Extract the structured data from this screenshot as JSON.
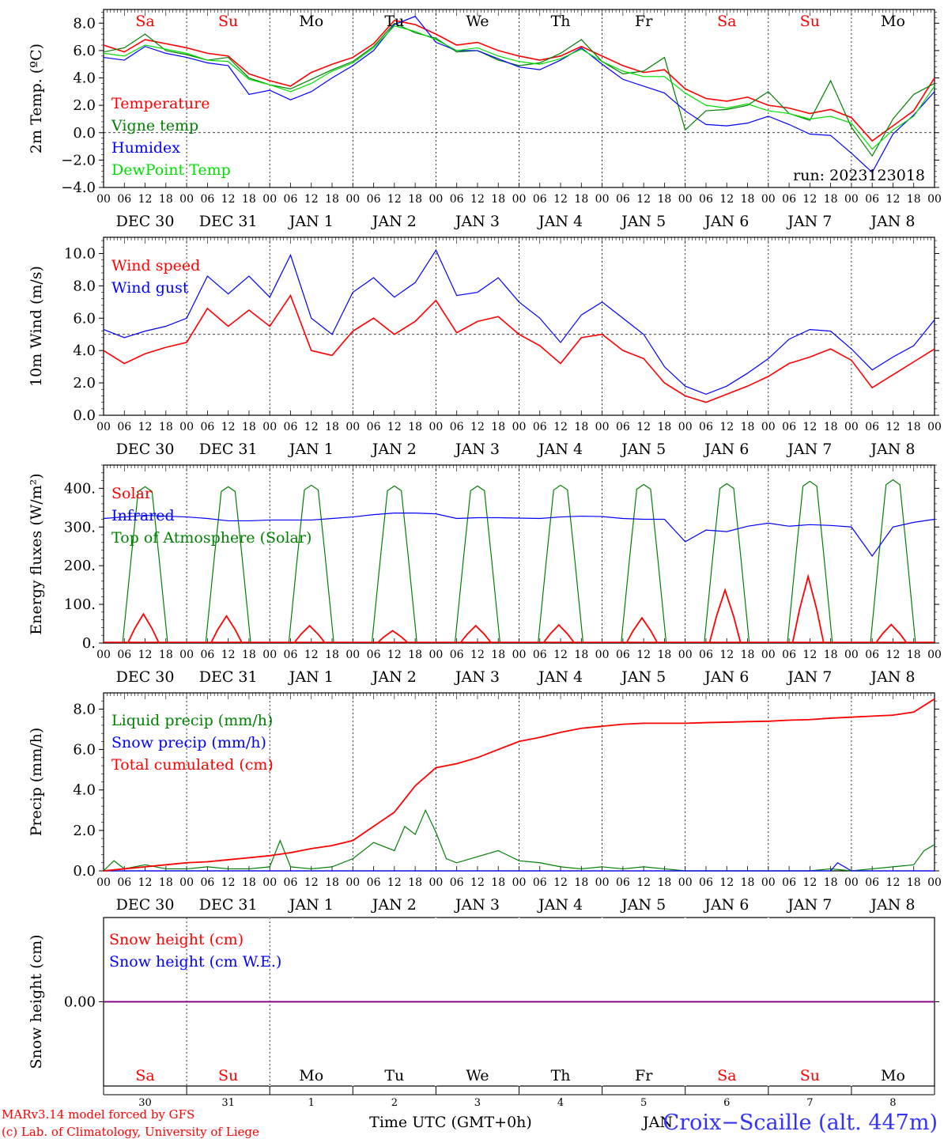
{
  "location": "Croix−Scaille (alt. 447m)",
  "credits": [
    "MARv3.14 model forced by GFS",
    "(c) Lab. of Climatology, University of Liege"
  ],
  "x_title": "Time UTC (GMT+0h)",
  "x_title_extra": "JAN",
  "run_label": "run: 2023123018",
  "hour_ticks": [
    "00",
    "06",
    "12",
    "18"
  ],
  "day_names": [
    "Sa",
    "Su",
    "Mo",
    "Tu",
    "We",
    "Th",
    "Fr",
    "Sa",
    "Su",
    "Mo"
  ],
  "weekend_flags": [
    true,
    true,
    false,
    false,
    false,
    false,
    false,
    true,
    true,
    false
  ],
  "date_labels": [
    "DEC 30",
    "DEC 31",
    "JAN  1",
    "JAN  2",
    "JAN  3",
    "JAN  4",
    "JAN  5",
    "JAN  6",
    "JAN  7",
    "JAN  8"
  ],
  "bottom_day_numbers": [
    "30",
    "31",
    "1",
    "2",
    "3",
    "4",
    "5",
    "6",
    "7",
    "8"
  ],
  "colors": {
    "red": "#ff0000",
    "green": "#008000",
    "blue": "#0000ff",
    "lightgreen": "#00dd00",
    "purple": "#800080",
    "axis": "#000000",
    "title": "#3333ff"
  },
  "chart_data": [
    {
      "type": "line",
      "ylabel": "2m Temp. (ºC)",
      "ylim": [
        -4,
        9
      ],
      "yticks": [
        "8.0",
        "6.0",
        "4.0",
        "2.0",
        "0.0",
        "−2.0",
        "−4.0"
      ],
      "ytick_values": [
        8,
        6,
        4,
        2,
        0,
        -2,
        -4
      ],
      "reference_line": 0,
      "x_unit": "hours since 2023-12-30 00 UTC",
      "legend": [
        "Temperature",
        "Vigne temp",
        "Humidex",
        "DewPoint Temp"
      ],
      "series": [
        {
          "name": "Temperature",
          "color": "#ff0000",
          "x": [
            0,
            6,
            12,
            18,
            24,
            30,
            36,
            42,
            48,
            54,
            60,
            66,
            72,
            78,
            84,
            90,
            96,
            102,
            108,
            114,
            120,
            126,
            132,
            138,
            144,
            150,
            156,
            162,
            168,
            174,
            180,
            186,
            192,
            198,
            204,
            210,
            216,
            222,
            228,
            234,
            240
          ],
          "values": [
            6.4,
            5.9,
            6.8,
            6.5,
            6.2,
            5.8,
            5.6,
            4.3,
            3.8,
            3.4,
            4.4,
            5.0,
            5.5,
            6.5,
            8.2,
            7.9,
            7.2,
            6.4,
            6.6,
            6.0,
            5.6,
            5.3,
            5.6,
            6.3,
            5.6,
            4.9,
            4.4,
            4.6,
            3.2,
            2.5,
            2.3,
            2.6,
            2.0,
            1.8,
            1.4,
            1.7,
            1.1,
            -0.6,
            0.5,
            1.6,
            4.0
          ]
        },
        {
          "name": "Vigne temp",
          "color": "#008000",
          "x": [
            0,
            6,
            12,
            18,
            24,
            30,
            36,
            42,
            48,
            54,
            60,
            66,
            72,
            78,
            84,
            90,
            96,
            102,
            108,
            114,
            120,
            126,
            132,
            138,
            144,
            150,
            156,
            162,
            168,
            174,
            180,
            186,
            192,
            198,
            204,
            210,
            216,
            222,
            228,
            234,
            240
          ],
          "values": [
            5.9,
            6.2,
            7.2,
            6.0,
            5.7,
            5.3,
            5.5,
            4.0,
            3.5,
            3.2,
            3.9,
            4.6,
            5.2,
            6.3,
            8.0,
            7.3,
            6.9,
            5.9,
            6.0,
            5.3,
            4.9,
            5.1,
            5.8,
            6.8,
            5.2,
            4.3,
            4.5,
            5.5,
            0.2,
            1.6,
            1.7,
            2.0,
            3.0,
            1.4,
            0.9,
            3.8,
            0.4,
            -1.7,
            1.0,
            2.8,
            3.6
          ]
        },
        {
          "name": "Humidex",
          "color": "#0000ff",
          "x": [
            0,
            6,
            12,
            18,
            24,
            30,
            36,
            42,
            48,
            54,
            60,
            66,
            72,
            78,
            84,
            90,
            96,
            102,
            108,
            114,
            120,
            126,
            132,
            138,
            144,
            150,
            156,
            162,
            168,
            174,
            180,
            186,
            192,
            198,
            204,
            210,
            216,
            222,
            228,
            234,
            240
          ],
          "values": [
            5.5,
            5.3,
            6.3,
            5.8,
            5.5,
            5.1,
            4.9,
            2.8,
            3.1,
            2.4,
            3.0,
            4.0,
            4.9,
            6.0,
            7.9,
            8.5,
            6.6,
            6.0,
            6.0,
            5.4,
            4.8,
            4.6,
            5.3,
            6.2,
            5.0,
            3.9,
            3.4,
            2.9,
            1.6,
            0.6,
            0.5,
            0.7,
            1.2,
            0.6,
            -0.1,
            -0.2,
            -1.5,
            -2.9,
            -0.1,
            1.3,
            3.0
          ]
        },
        {
          "name": "DewPoint Temp",
          "color": "#00dd00",
          "x": [
            0,
            6,
            12,
            18,
            24,
            30,
            36,
            42,
            48,
            54,
            60,
            66,
            72,
            78,
            84,
            90,
            96,
            102,
            108,
            114,
            120,
            126,
            132,
            138,
            144,
            150,
            156,
            162,
            168,
            174,
            180,
            186,
            192,
            198,
            204,
            210,
            216,
            222,
            228,
            234,
            240
          ],
          "values": [
            5.8,
            5.6,
            6.4,
            6.1,
            5.8,
            5.3,
            5.2,
            3.9,
            3.5,
            3.0,
            3.6,
            4.5,
            5.1,
            6.2,
            7.8,
            7.4,
            6.8,
            6.0,
            6.2,
            5.6,
            5.2,
            5.0,
            5.4,
            6.1,
            5.2,
            4.5,
            4.1,
            4.1,
            2.9,
            2.0,
            1.8,
            2.1,
            1.6,
            1.4,
            1.0,
            1.2,
            0.7,
            -1.2,
            0.2,
            1.2,
            3.4
          ]
        }
      ]
    },
    {
      "type": "line",
      "ylabel": "10m Wind (m/s)",
      "ylim": [
        0,
        11
      ],
      "yticks": [
        "10.0",
        "8.0",
        "6.0",
        "4.0",
        "2.0",
        "0.0"
      ],
      "ytick_values": [
        10,
        8,
        6,
        4,
        2,
        0
      ],
      "reference_line": 5,
      "x_unit": "hours since 2023-12-30 00 UTC",
      "legend": [
        "Wind speed",
        "Wind gust"
      ],
      "series": [
        {
          "name": "Wind speed",
          "color": "#ff0000",
          "x": [
            0,
            6,
            12,
            18,
            24,
            30,
            36,
            42,
            48,
            54,
            60,
            66,
            72,
            78,
            84,
            90,
            96,
            102,
            108,
            114,
            120,
            126,
            132,
            138,
            144,
            150,
            156,
            162,
            168,
            174,
            180,
            186,
            192,
            198,
            204,
            210,
            216,
            222,
            228,
            234,
            240
          ],
          "values": [
            4.0,
            3.2,
            3.8,
            4.2,
            4.5,
            6.6,
            5.5,
            6.5,
            5.5,
            7.4,
            4.0,
            3.7,
            5.2,
            6.0,
            5.0,
            5.8,
            7.1,
            5.1,
            5.8,
            6.1,
            5.0,
            4.3,
            3.2,
            4.8,
            5.0,
            4.0,
            3.5,
            2.0,
            1.2,
            0.8,
            1.3,
            1.8,
            2.4,
            3.2,
            3.6,
            4.1,
            3.4,
            1.7,
            2.5,
            3.3,
            4.1
          ]
        },
        {
          "name": "Wind gust",
          "color": "#0000ff",
          "x": [
            0,
            6,
            12,
            18,
            24,
            30,
            36,
            42,
            48,
            54,
            60,
            66,
            72,
            78,
            84,
            90,
            96,
            102,
            108,
            114,
            120,
            126,
            132,
            138,
            144,
            150,
            156,
            162,
            168,
            174,
            180,
            186,
            192,
            198,
            204,
            210,
            216,
            222,
            228,
            234,
            240
          ],
          "values": [
            5.3,
            4.8,
            5.2,
            5.5,
            6.0,
            8.6,
            7.5,
            8.6,
            7.3,
            9.9,
            6.0,
            5.0,
            7.6,
            8.5,
            7.3,
            8.2,
            10.2,
            7.4,
            7.6,
            8.5,
            7.0,
            6.0,
            4.5,
            6.2,
            7.0,
            6.0,
            5.0,
            3.0,
            1.8,
            1.3,
            1.8,
            2.6,
            3.5,
            4.7,
            5.3,
            5.2,
            4.1,
            2.8,
            3.6,
            4.3,
            5.9
          ]
        }
      ]
    },
    {
      "type": "line",
      "ylabel": "Energy fluxes (W/m²)",
      "ylim": [
        0,
        460
      ],
      "yticks": [
        "400.",
        "300.",
        "200.",
        "100.",
        "0."
      ],
      "ytick_values": [
        400,
        300,
        200,
        100,
        0
      ],
      "x_unit": "hours since 2023-12-30 00 UTC",
      "legend": [
        "Solar",
        "Infrared",
        "Top of Atmosphere (Solar)"
      ],
      "toa_peaks": [
        404,
        404,
        408,
        406,
        406,
        408,
        410,
        412,
        418,
        422
      ],
      "solar_peaks": [
        75,
        70,
        45,
        32,
        45,
        47,
        65,
        137,
        172,
        48
      ],
      "series": [
        {
          "name": "Infrared",
          "color": "#0000ff",
          "x": [
            0,
            6,
            12,
            18,
            24,
            30,
            36,
            42,
            48,
            54,
            60,
            66,
            72,
            78,
            84,
            90,
            96,
            102,
            108,
            114,
            120,
            126,
            132,
            138,
            144,
            150,
            156,
            162,
            168,
            174,
            180,
            186,
            192,
            198,
            204,
            210,
            216,
            222,
            228,
            234,
            240
          ],
          "values": [
            322,
            326,
            330,
            328,
            326,
            322,
            316,
            316,
            318,
            318,
            318,
            322,
            326,
            332,
            336,
            336,
            334,
            322,
            324,
            324,
            323,
            322,
            326,
            328,
            327,
            322,
            320,
            320,
            262,
            292,
            288,
            302,
            310,
            302,
            306,
            304,
            300,
            225,
            300,
            312,
            320
          ]
        }
      ]
    },
    {
      "type": "line",
      "ylabel": "Precip (mm/h)",
      "ylim": [
        0,
        8.8
      ],
      "yticks": [
        "8.0",
        "6.0",
        "4.0",
        "2.0",
        "0.0"
      ],
      "ytick_values": [
        8,
        6,
        4,
        2,
        0
      ],
      "x_unit": "hours since 2023-12-30 00 UTC",
      "legend": [
        "Liquid precip (mm/h)",
        "Snow precip (mm/h)",
        "Total cumulated (cm)"
      ],
      "series": [
        {
          "name": "Liquid precip (mm/h)",
          "color": "#008000",
          "x": [
            0,
            3,
            6,
            9,
            12,
            18,
            24,
            30,
            36,
            42,
            48,
            51,
            54,
            60,
            66,
            72,
            78,
            84,
            87,
            90,
            93,
            96,
            99,
            102,
            108,
            114,
            120,
            126,
            132,
            138,
            144,
            150,
            156,
            162,
            168,
            180,
            192,
            204,
            210,
            216,
            222,
            228,
            234,
            237,
            240
          ],
          "values": [
            0.0,
            0.5,
            0.1,
            0.2,
            0.3,
            0.1,
            0.1,
            0.2,
            0.1,
            0.1,
            0.2,
            1.5,
            0.2,
            0.1,
            0.2,
            0.6,
            1.4,
            1.0,
            2.2,
            1.8,
            3.0,
            1.9,
            0.6,
            0.4,
            0.7,
            1.0,
            0.5,
            0.4,
            0.2,
            0.1,
            0.2,
            0.1,
            0.2,
            0.1,
            0.0,
            0.0,
            0.0,
            0.0,
            0.1,
            0.0,
            0.1,
            0.2,
            0.3,
            1.0,
            1.3
          ]
        },
        {
          "name": "Snow precip (mm/h)",
          "color": "#0000ff",
          "x": [
            0,
            48,
            120,
            210,
            212,
            216,
            240
          ],
          "values": [
            0.0,
            0.0,
            0.0,
            0.0,
            0.4,
            0.0,
            0.0
          ]
        },
        {
          "name": "Total cumulated (cm)",
          "color": "#ff0000",
          "x": [
            0,
            6,
            12,
            18,
            24,
            30,
            36,
            42,
            48,
            54,
            60,
            66,
            72,
            78,
            84,
            90,
            96,
            102,
            108,
            114,
            120,
            126,
            132,
            138,
            144,
            150,
            156,
            162,
            168,
            174,
            180,
            186,
            192,
            198,
            204,
            210,
            216,
            222,
            228,
            234,
            240
          ],
          "values": [
            0.0,
            0.1,
            0.2,
            0.3,
            0.4,
            0.45,
            0.55,
            0.65,
            0.75,
            0.9,
            1.1,
            1.25,
            1.5,
            2.2,
            2.9,
            4.2,
            5.1,
            5.3,
            5.6,
            6.0,
            6.4,
            6.6,
            6.85,
            7.05,
            7.15,
            7.25,
            7.3,
            7.3,
            7.3,
            7.33,
            7.35,
            7.38,
            7.4,
            7.45,
            7.48,
            7.55,
            7.6,
            7.65,
            7.7,
            7.85,
            8.5
          ]
        }
      ]
    },
    {
      "type": "line",
      "ylabel": "Snow height (cm)",
      "ylim": [
        -1,
        1
      ],
      "yticks": [
        "0.00"
      ],
      "ytick_values": [
        0
      ],
      "x_unit": "hours since 2023-12-30 00 UTC",
      "legend": [
        "Snow height (cm)",
        "Snow height (cm W.E.)"
      ],
      "series": [
        {
          "name": "Snow height (cm)",
          "color": "#ff0000",
          "x": [
            0,
            240
          ],
          "values": [
            0,
            0
          ]
        },
        {
          "name": "Snow height (cm W.E.)",
          "color": "#0000ff",
          "x": [
            0,
            240
          ],
          "values": [
            0,
            0
          ]
        }
      ]
    }
  ]
}
